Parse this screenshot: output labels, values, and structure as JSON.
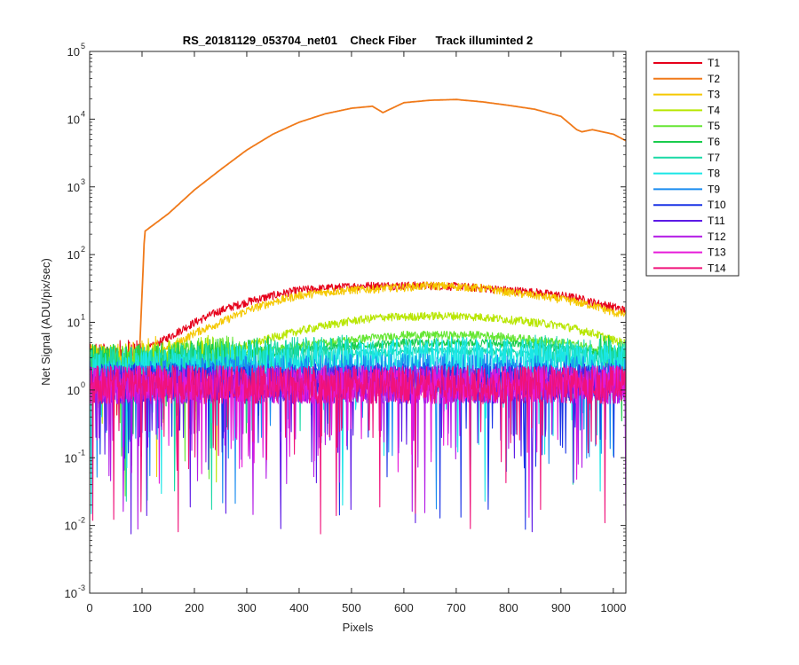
{
  "chart_data": {
    "type": "line",
    "title": "RS_20181129_053704_net01    Check Fiber      Track illuminted 2",
    "xlabel": "Pixels",
    "ylabel": "Net Signal (ADU/pix/sec)",
    "xlim": [
      0,
      1024
    ],
    "ylim": [
      0.001,
      100000
    ],
    "yscale": "log",
    "grid": false,
    "legend_position": "outside-top-right",
    "x_ticks": [
      "0",
      "100",
      "200",
      "300",
      "400",
      "500",
      "600",
      "700",
      "800",
      "900",
      "1000"
    ],
    "y_ticks": [
      {
        "base": "10",
        "exp": "-3"
      },
      {
        "base": "10",
        "exp": "-2"
      },
      {
        "base": "10",
        "exp": "-1"
      },
      {
        "base": "10",
        "exp": "0"
      },
      {
        "base": "10",
        "exp": "1"
      },
      {
        "base": "10",
        "exp": "2"
      },
      {
        "base": "10",
        "exp": "3"
      },
      {
        "base": "10",
        "exp": "4"
      },
      {
        "base": "10",
        "exp": "5"
      }
    ],
    "x": [
      0,
      50,
      95,
      105,
      150,
      200,
      250,
      300,
      350,
      400,
      450,
      500,
      540,
      560,
      600,
      650,
      700,
      750,
      800,
      850,
      900,
      930,
      940,
      960,
      1000,
      1024
    ],
    "series": [
      {
        "name": "T1",
        "color": "#e6001a",
        "values": [
          2.5,
          2.8,
          3.2,
          3.8,
          6,
          10,
          15,
          20,
          25,
          30,
          32,
          34,
          35,
          35,
          35,
          35,
          34,
          32,
          30,
          28,
          25,
          23,
          22,
          20,
          17,
          15
        ]
      },
      {
        "name": "T2",
        "color": "#f07a1a",
        "values": [
          2.5,
          2.8,
          3.2,
          220,
          400,
          900,
          1800,
          3500,
          6000,
          9000,
          12000,
          14500,
          15500,
          12500,
          17500,
          19000,
          19500,
          18000,
          16000,
          14000,
          11000,
          7000,
          6500,
          7000,
          6000,
          4800
        ]
      },
      {
        "name": "T3",
        "color": "#f5c800",
        "values": [
          2.5,
          2.5,
          2.8,
          3.0,
          4,
          7,
          10,
          15,
          20,
          25,
          28,
          30,
          31,
          32,
          33,
          35,
          34,
          32,
          28,
          25,
          22,
          20,
          19,
          18,
          14,
          13
        ]
      },
      {
        "name": "T4",
        "color": "#b8e600",
        "values": [
          2.5,
          2.5,
          2.5,
          2.5,
          3,
          3.2,
          3.5,
          4.5,
          6,
          7.5,
          9,
          10.5,
          11.5,
          12,
          12,
          12.5,
          12.5,
          12,
          11,
          10,
          9,
          8,
          7.5,
          7,
          5.5,
          5
        ]
      },
      {
        "name": "T5",
        "color": "#66e633",
        "values": [
          2.5,
          2.5,
          2.5,
          2.5,
          2.8,
          3,
          3.2,
          3.5,
          4,
          4.5,
          5,
          5.5,
          6,
          6,
          6.5,
          6.5,
          6.5,
          6.5,
          6,
          5.5,
          5,
          4.8,
          4.5,
          4.2,
          3.8,
          3.5
        ]
      },
      {
        "name": "T6",
        "color": "#1acc4d",
        "values": [
          2.5,
          2.5,
          2.5,
          2.5,
          2.6,
          2.8,
          3,
          3.2,
          3.5,
          4,
          4.2,
          4.5,
          4.6,
          4.8,
          5,
          5,
          5,
          5,
          4.8,
          4.5,
          4.2,
          4,
          3.8,
          3.6,
          3.3,
          3.2
        ]
      },
      {
        "name": "T7",
        "color": "#1ad9a6",
        "values": [
          2.3,
          2.3,
          2.3,
          2.3,
          2.4,
          2.5,
          2.6,
          2.8,
          3,
          3.2,
          3.4,
          3.5,
          3.6,
          3.6,
          3.8,
          3.8,
          3.8,
          3.8,
          3.6,
          3.5,
          3.3,
          3.2,
          3.1,
          3,
          2.9,
          2.8
        ]
      },
      {
        "name": "T8",
        "color": "#1ae6e6",
        "values": [
          2,
          2,
          2,
          2,
          2.1,
          2.2,
          2.3,
          2.5,
          2.6,
          2.8,
          2.9,
          3,
          3,
          3,
          3.2,
          3.2,
          3.2,
          3.1,
          3,
          3,
          2.9,
          2.8,
          2.8,
          2.7,
          2.6,
          2.5
        ]
      },
      {
        "name": "T9",
        "color": "#1a8cf0",
        "values": [
          1.5,
          1.5,
          1.5,
          1.5,
          1.5,
          1.6,
          1.6,
          1.7,
          1.7,
          1.7,
          1.8,
          1.8,
          1.8,
          1.8,
          1.8,
          1.8,
          1.8,
          1.8,
          1.8,
          1.7,
          1.7,
          1.7,
          1.7,
          1.7,
          1.6,
          1.6
        ]
      },
      {
        "name": "T10",
        "color": "#1a33e6",
        "values": [
          1.3,
          1.3,
          1.3,
          1.3,
          1.3,
          1.3,
          1.3,
          1.3,
          1.3,
          1.3,
          1.3,
          1.3,
          1.3,
          1.3,
          1.3,
          1.3,
          1.3,
          1.3,
          1.3,
          1.3,
          1.3,
          1.3,
          1.3,
          1.3,
          1.3,
          1.3
        ]
      },
      {
        "name": "T11",
        "color": "#5c1ae6",
        "values": [
          1.2,
          1.2,
          1.2,
          1.2,
          1.2,
          1.2,
          1.2,
          1.2,
          1.2,
          1.2,
          1.2,
          1.2,
          1.2,
          1.2,
          1.2,
          1.2,
          1.2,
          1.2,
          1.2,
          1.2,
          1.2,
          1.2,
          1.2,
          1.2,
          1.2,
          1.2
        ]
      },
      {
        "name": "T12",
        "color": "#b31ae6",
        "values": [
          1.2,
          1.2,
          1.2,
          1.2,
          1.2,
          1.2,
          1.2,
          1.2,
          1.2,
          1.2,
          1.2,
          1.2,
          1.2,
          1.2,
          1.2,
          1.2,
          1.2,
          1.2,
          1.2,
          1.2,
          1.2,
          1.2,
          1.2,
          1.2,
          1.2,
          1.2
        ]
      },
      {
        "name": "T13",
        "color": "#e61ad9",
        "values": [
          1.2,
          1.2,
          1.2,
          1.2,
          1.2,
          1.2,
          1.2,
          1.2,
          1.2,
          1.2,
          1.2,
          1.2,
          1.2,
          1.2,
          1.2,
          1.2,
          1.2,
          1.2,
          1.2,
          1.2,
          1.2,
          1.2,
          1.2,
          1.2,
          1.2,
          1.2
        ]
      },
      {
        "name": "T14",
        "color": "#f0127a",
        "values": [
          1.2,
          1.2,
          1.2,
          1.2,
          1.2,
          1.2,
          1.2,
          1.2,
          1.2,
          1.2,
          1.2,
          1.2,
          1.2,
          1.2,
          1.2,
          1.2,
          1.2,
          1.2,
          1.2,
          1.2,
          1.2,
          1.2,
          1.2,
          1.2,
          1.2,
          1.2
        ]
      }
    ]
  }
}
